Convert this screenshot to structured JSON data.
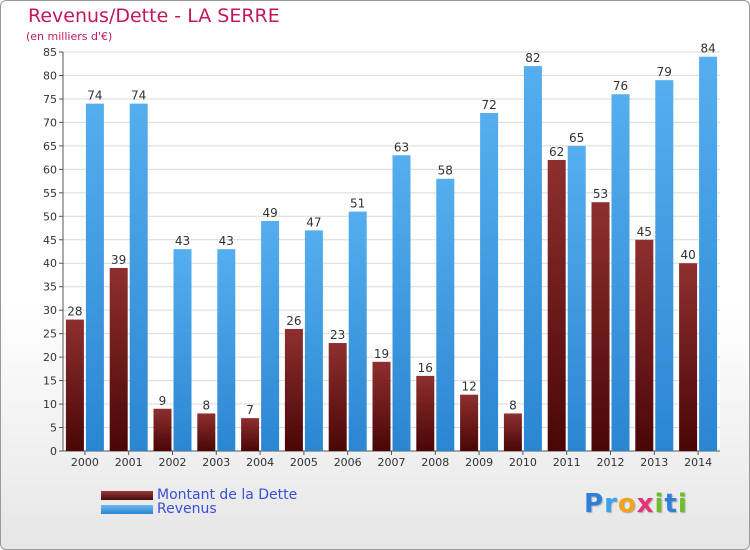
{
  "header": {
    "title": "Revenus/Dette - LA SERRE",
    "subtitle": "(en milliers d'€)"
  },
  "legend": {
    "items": [
      {
        "label": "Montant de la Dette",
        "color": "#6e1a1a"
      },
      {
        "label": "Revenus",
        "color": "#3f9fe8"
      }
    ]
  },
  "logo": {
    "letters": [
      {
        "ch": "P",
        "color": "#2f7fd8"
      },
      {
        "ch": "r",
        "color": "#3aa2e8"
      },
      {
        "ch": "o",
        "color": "#f2a31b"
      },
      {
        "ch": "x",
        "color": "#e2347a"
      },
      {
        "ch": "i",
        "color": "#6cbf2a"
      },
      {
        "ch": "t",
        "color": "#2f7fd8"
      },
      {
        "ch": "i",
        "color": "#6cbf2a"
      }
    ]
  },
  "chart_data": {
    "type": "bar",
    "title": "Revenus/Dette - LA SERRE",
    "subtitle": "(en milliers d'€)",
    "categories": [
      "2000",
      "2001",
      "2002",
      "2003",
      "2004",
      "2005",
      "2006",
      "2007",
      "2008",
      "2009",
      "2010",
      "2011",
      "2012",
      "2013",
      "2014"
    ],
    "series": [
      {
        "name": "Montant de la Dette",
        "color": "#6e1a1a",
        "values": [
          28,
          39,
          9,
          8,
          7,
          26,
          23,
          19,
          16,
          12,
          8,
          62,
          53,
          45,
          40
        ]
      },
      {
        "name": "Revenus",
        "color": "#3f9fe8",
        "values": [
          74,
          74,
          43,
          43,
          49,
          47,
          51,
          63,
          58,
          72,
          82,
          65,
          76,
          79,
          84
        ]
      }
    ],
    "ylim": [
      0,
      85
    ],
    "yticks": [
      0,
      5,
      10,
      15,
      20,
      25,
      30,
      35,
      40,
      45,
      50,
      55,
      60,
      65,
      70,
      75,
      80,
      85
    ],
    "grid": true,
    "legend_position": "bottom-left"
  }
}
